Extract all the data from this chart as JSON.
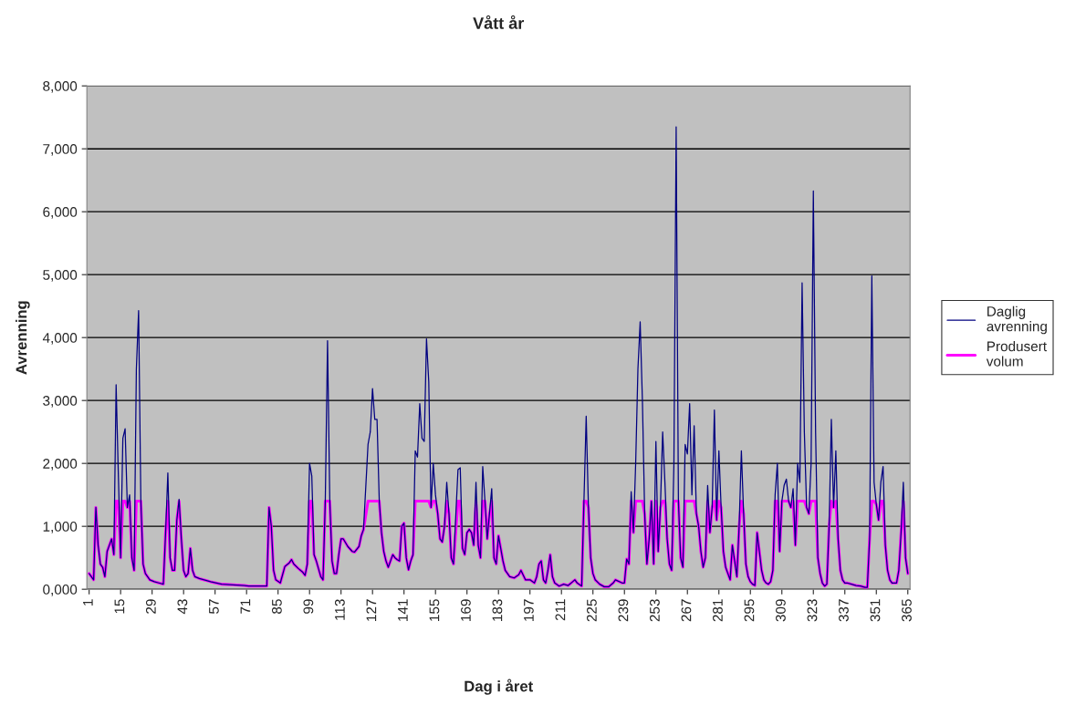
{
  "chart_data": {
    "type": "line",
    "title": "Vått år",
    "xlabel": "Dag i året",
    "ylabel": "Avrenning",
    "x": [
      1,
      3,
      4,
      5,
      6,
      7,
      8,
      9,
      10,
      11,
      12,
      13,
      14,
      15,
      16,
      17,
      18,
      19,
      20,
      21,
      22,
      23,
      24,
      25,
      26,
      28,
      30,
      32,
      34,
      35,
      36,
      37,
      38,
      39,
      40,
      41,
      42,
      43,
      44,
      45,
      46,
      47,
      48,
      50,
      55,
      60,
      65,
      70,
      72,
      80,
      81,
      82,
      83,
      84,
      86,
      88,
      90,
      91,
      92,
      94,
      96,
      97,
      98,
      99,
      100,
      101,
      102,
      104,
      105,
      106,
      107,
      108,
      109,
      110,
      111,
      112,
      113,
      114,
      116,
      118,
      119,
      121,
      122,
      123,
      125,
      126,
      127,
      128,
      129,
      130,
      131,
      132,
      133,
      134,
      135,
      136,
      137,
      138,
      139,
      140,
      141,
      142,
      143,
      144,
      145,
      146,
      147,
      148,
      149,
      150,
      151,
      152,
      153,
      154,
      155,
      156,
      157,
      158,
      159,
      160,
      161,
      162,
      163,
      165,
      166,
      167,
      168,
      169,
      170,
      171,
      172,
      173,
      174,
      175,
      176,
      177,
      178,
      179,
      180,
      181,
      182,
      183,
      184,
      185,
      186,
      188,
      190,
      192,
      193,
      195,
      197,
      199,
      200,
      201,
      202,
      203,
      204,
      205,
      206,
      207,
      208,
      210,
      212,
      214,
      216,
      217,
      218,
      220,
      221,
      222,
      223,
      224,
      225,
      226,
      228,
      230,
      232,
      234,
      235,
      238,
      239,
      240,
      241,
      242,
      243,
      244,
      245,
      246,
      247,
      248,
      249,
      250,
      251,
      252,
      253,
      254,
      255,
      256,
      257,
      258,
      259,
      260,
      261,
      262,
      263,
      264,
      265,
      266,
      267,
      268,
      269,
      270,
      271,
      272,
      273,
      274,
      275,
      276,
      277,
      278,
      279,
      280,
      281,
      282,
      283,
      284,
      285,
      286,
      287,
      288,
      289,
      290,
      291,
      292,
      293,
      294,
      295,
      296,
      297,
      298,
      299,
      300,
      301,
      302,
      303,
      304,
      305,
      306,
      307,
      308,
      309,
      310,
      311,
      312,
      313,
      314,
      315,
      316,
      317,
      318,
      319,
      320,
      321,
      322,
      323,
      324,
      325,
      326,
      327,
      328,
      329,
      330,
      331,
      332,
      333,
      334,
      335,
      336,
      337,
      338,
      340,
      342,
      344,
      346,
      347,
      348,
      349,
      350,
      351,
      352,
      353,
      354,
      355,
      356,
      357,
      358,
      360,
      361,
      362,
      363,
      364,
      365
    ],
    "series": [
      {
        "name": "Daglig avrenning",
        "color": "#000080",
        "values": [
          250,
          150,
          1300,
          700,
          400,
          350,
          200,
          600,
          700,
          800,
          550,
          3250,
          1800,
          500,
          2400,
          2550,
          1300,
          1500,
          500,
          300,
          3500,
          4430,
          1400,
          400,
          250,
          150,
          120,
          100,
          80,
          900,
          1850,
          500,
          300,
          300,
          1100,
          1430,
          800,
          300,
          200,
          250,
          650,
          300,
          200,
          170,
          120,
          80,
          70,
          60,
          50,
          50,
          1300,
          1000,
          300,
          150,
          100,
          360,
          420,
          470,
          400,
          330,
          270,
          220,
          400,
          2000,
          1800,
          550,
          450,
          200,
          150,
          1400,
          3950,
          1400,
          450,
          250,
          250,
          550,
          800,
          800,
          680,
          600,
          590,
          680,
          850,
          950,
          2300,
          2500,
          3190,
          2700,
          2700,
          1400,
          900,
          600,
          450,
          350,
          450,
          550,
          500,
          470,
          450,
          1000,
          1050,
          500,
          310,
          450,
          550,
          2200,
          2100,
          2950,
          2400,
          2350,
          3980,
          3300,
          1300,
          2000,
          1500,
          1200,
          800,
          750,
          1000,
          1700,
          1200,
          500,
          400,
          1900,
          1930,
          650,
          550,
          900,
          950,
          900,
          700,
          1700,
          700,
          500,
          1950,
          1400,
          800,
          1200,
          1600,
          500,
          400,
          850,
          650,
          450,
          300,
          200,
          180,
          230,
          300,
          150,
          150,
          100,
          200,
          400,
          450,
          150,
          100,
          300,
          550,
          200,
          100,
          50,
          80,
          60,
          120,
          150,
          100,
          50,
          1400,
          2750,
          1300,
          500,
          250,
          150,
          80,
          40,
          40,
          100,
          150,
          100,
          100,
          480,
          400,
          1550,
          900,
          2000,
          3500,
          4250,
          3000,
          1200,
          400,
          800,
          1400,
          400,
          2350,
          600,
          1300,
          2500,
          1700,
          800,
          400,
          300,
          2000,
          7350,
          1400,
          500,
          350,
          2300,
          2150,
          2950,
          1500,
          2600,
          1200,
          1000,
          600,
          350,
          500,
          1650,
          900,
          1300,
          2850,
          1100,
          2200,
          1300,
          600,
          350,
          250,
          150,
          700,
          450,
          200,
          1000,
          2200,
          1200,
          400,
          200,
          120,
          80,
          60,
          900,
          600,
          300,
          150,
          100,
          80,
          120,
          300,
          1500,
          2000,
          600,
          1400,
          1650,
          1750,
          1400,
          1300,
          1600,
          700,
          2000,
          1700,
          4870,
          2500,
          1300,
          1200,
          2000,
          6330,
          2500,
          500,
          250,
          100,
          50,
          80,
          1000,
          2700,
          1300,
          2200,
          800,
          300,
          150,
          100,
          100,
          80,
          60,
          50,
          30,
          30,
          800,
          4980,
          1700,
          1350,
          1100,
          1700,
          1950,
          700,
          300,
          150,
          100,
          100,
          300,
          900,
          1700,
          500,
          250
        ]
      },
      {
        "name": "Produsert volum",
        "color": "#ff00ff",
        "values": [
          250,
          150,
          1300,
          700,
          400,
          350,
          200,
          600,
          700,
          800,
          550,
          1400,
          1400,
          500,
          1400,
          1400,
          1300,
          1400,
          500,
          300,
          1400,
          1400,
          1400,
          400,
          250,
          150,
          120,
          100,
          80,
          900,
          1400,
          500,
          300,
          300,
          1100,
          1400,
          800,
          300,
          200,
          250,
          650,
          300,
          200,
          170,
          120,
          80,
          70,
          60,
          50,
          50,
          1300,
          1000,
          300,
          150,
          100,
          360,
          420,
          470,
          400,
          330,
          270,
          220,
          400,
          1400,
          1400,
          550,
          450,
          200,
          150,
          1400,
          1400,
          1400,
          450,
          250,
          250,
          550,
          800,
          800,
          680,
          600,
          590,
          680,
          850,
          950,
          1400,
          1400,
          1400,
          1400,
          1400,
          1400,
          900,
          600,
          450,
          350,
          450,
          550,
          500,
          470,
          450,
          1000,
          1050,
          500,
          310,
          450,
          550,
          1400,
          1400,
          1400,
          1400,
          1400,
          1400,
          1400,
          1300,
          1400,
          1400,
          1200,
          800,
          750,
          1000,
          1400,
          1200,
          500,
          400,
          1400,
          1400,
          650,
          550,
          900,
          950,
          900,
          700,
          1400,
          700,
          500,
          1400,
          1400,
          800,
          1200,
          1400,
          500,
          400,
          850,
          650,
          450,
          300,
          200,
          180,
          230,
          300,
          150,
          150,
          100,
          200,
          400,
          450,
          150,
          100,
          300,
          550,
          200,
          100,
          50,
          80,
          60,
          120,
          150,
          100,
          50,
          1400,
          1400,
          1300,
          500,
          250,
          150,
          80,
          40,
          40,
          100,
          150,
          100,
          100,
          480,
          400,
          1400,
          900,
          1400,
          1400,
          1400,
          1400,
          1200,
          400,
          800,
          1400,
          400,
          1400,
          600,
          1300,
          1400,
          1400,
          800,
          400,
          300,
          1400,
          1400,
          1400,
          500,
          350,
          1400,
          1400,
          1400,
          1400,
          1400,
          1200,
          1000,
          600,
          350,
          500,
          1400,
          900,
          1300,
          1400,
          1100,
          1400,
          1300,
          600,
          350,
          250,
          150,
          700,
          450,
          200,
          1000,
          1400,
          1200,
          400,
          200,
          120,
          80,
          60,
          900,
          600,
          300,
          150,
          100,
          80,
          120,
          300,
          1400,
          1400,
          600,
          1400,
          1400,
          1400,
          1400,
          1300,
          1400,
          700,
          1400,
          1400,
          1400,
          1400,
          1300,
          1200,
          1400,
          1400,
          1400,
          500,
          250,
          100,
          50,
          80,
          1000,
          1400,
          1300,
          1400,
          800,
          300,
          150,
          100,
          100,
          80,
          60,
          50,
          30,
          30,
          800,
          1400,
          1400,
          1350,
          1100,
          1400,
          1400,
          700,
          300,
          150,
          100,
          100,
          300,
          900,
          1400,
          500,
          250
        ]
      }
    ],
    "xlim": [
      0,
      366
    ],
    "xticks": [
      1,
      15,
      29,
      43,
      57,
      71,
      85,
      99,
      113,
      127,
      141,
      155,
      169,
      183,
      197,
      211,
      225,
      239,
      253,
      267,
      281,
      295,
      309,
      323,
      337,
      351,
      365
    ],
    "ylim": [
      0,
      8000
    ],
    "yticks": [
      {
        "value": 0,
        "label": "0,000"
      },
      {
        "value": 1000,
        "label": "1,000"
      },
      {
        "value": 2000,
        "label": "2,000"
      },
      {
        "value": 3000,
        "label": "3,000"
      },
      {
        "value": 4000,
        "label": "4,000"
      },
      {
        "value": 5000,
        "label": "5,000"
      },
      {
        "value": 6000,
        "label": "6,000"
      },
      {
        "value": 7000,
        "label": "7,000"
      },
      {
        "value": 8000,
        "label": "8,000"
      }
    ],
    "grid": "y",
    "legend": "right",
    "marker": "none",
    "line_style": "solid"
  }
}
